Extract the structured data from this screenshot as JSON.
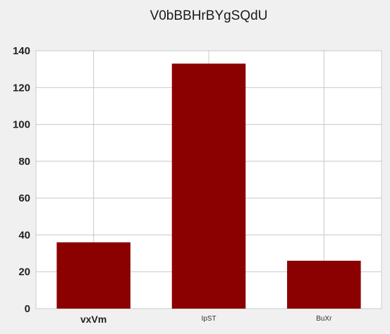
{
  "chart_data": {
    "type": "bar",
    "title": "V0bBBHrBYgSQdU",
    "categories": [
      "vxVm",
      "IpST",
      "BuXr"
    ],
    "values": [
      36,
      133,
      26
    ],
    "xlabel": "",
    "ylabel": "",
    "ylim": [
      0,
      140
    ],
    "yticks": [
      0,
      20,
      40,
      60,
      80,
      100,
      120,
      140
    ],
    "grid": true,
    "bar_color": "#8b0000",
    "plot_background": "#ffffff",
    "figure_background": "#f0f0f0"
  }
}
